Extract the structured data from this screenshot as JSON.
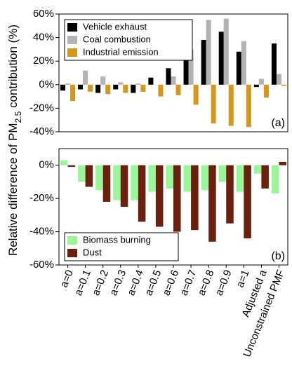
{
  "chart_data": [
    {
      "type": "bar",
      "panel_label": "(a)",
      "legend_corner": "top-left",
      "ylim": [
        -40,
        60
      ],
      "yticks": [
        {
          "value": -40,
          "label": "-40%"
        },
        {
          "value": -20,
          "label": "-20%"
        },
        {
          "value": 0,
          "label": "0%"
        },
        {
          "value": 20,
          "label": "20%"
        },
        {
          "value": 40,
          "label": "40%"
        },
        {
          "value": 60,
          "label": "60%"
        }
      ],
      "series": [
        {
          "name": "Vehicle exhaust",
          "color": "#000000",
          "values": [
            -5,
            -4,
            -7,
            -4,
            -7,
            6,
            14,
            23,
            38,
            45,
            28,
            -2,
            35
          ]
        },
        {
          "name": "Coal combustion",
          "color": "#b3b3b3",
          "values": [
            1,
            12,
            7,
            2,
            1,
            0,
            7,
            30,
            55,
            56,
            37,
            5,
            9
          ]
        },
        {
          "name": "Industrial emission",
          "color": "#d4971a",
          "values": [
            -14,
            -6,
            -8,
            -7,
            -6,
            -10,
            -9,
            -17,
            -33,
            -35,
            -36,
            -11,
            -1
          ]
        }
      ]
    },
    {
      "type": "bar",
      "panel_label": "(b)",
      "legend_corner": "bottom-left",
      "categories": [
        "a=0",
        "a=0.1",
        "a=0.2",
        "a=0.3",
        "a=0.4",
        "a=0.5",
        "a=0.6",
        "a=0.7",
        "a=0.8",
        "a=0.9",
        "a=1",
        "Adjusted a",
        "Unconstrained PMF"
      ],
      "ylim": [
        -60,
        10
      ],
      "yticks": [
        {
          "value": -60,
          "label": "-60%"
        },
        {
          "value": -40,
          "label": "-40%"
        },
        {
          "value": -20,
          "label": "-20%"
        },
        {
          "value": 0,
          "label": "0%"
        }
      ],
      "series": [
        {
          "name": "Biomass burning",
          "color": "#99f79a",
          "values": [
            3,
            -10,
            -15,
            -21,
            -21,
            -16,
            -14,
            -16,
            -15,
            -10,
            -16,
            -5,
            -17
          ]
        },
        {
          "name": "Dust",
          "color": "#6b200e",
          "values": [
            -1,
            -13,
            -22,
            -25,
            -34,
            -37,
            -40,
            -39,
            -46,
            -35,
            -44,
            -14,
            2
          ]
        }
      ]
    }
  ],
  "y_label": [
    "Relative difference of PM",
    "2.5",
    " contribution (%)"
  ]
}
